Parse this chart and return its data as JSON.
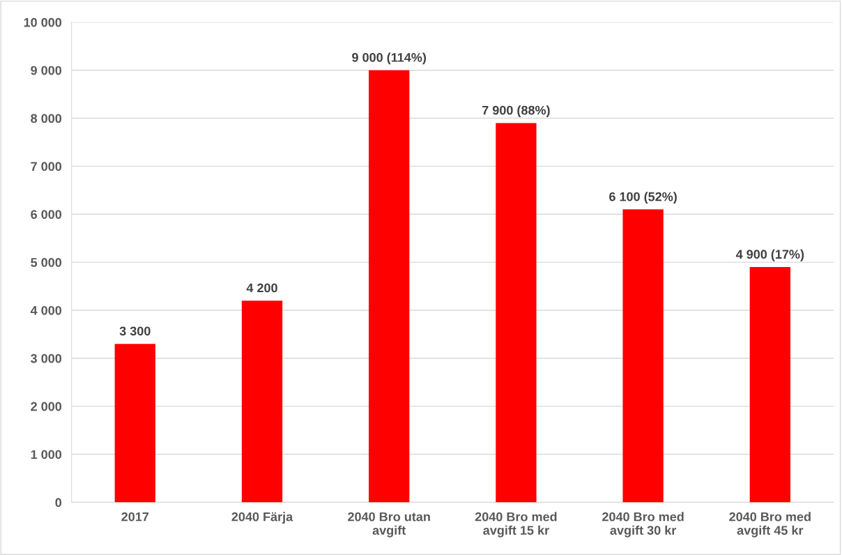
{
  "chart_data": {
    "type": "bar",
    "categories": [
      "2017",
      "2040 Färja",
      "2040 Bro utan\navgift",
      "2040 Bro med\navgift 15 kr",
      "2040 Bro med\navgift 30 kr",
      "2040 Bro med\navgift 45 kr"
    ],
    "values": [
      3300,
      4200,
      9000,
      7900,
      6100,
      4900
    ],
    "value_labels": [
      "3 300",
      "4 200",
      "9 000 (114%)",
      "7 900 (88%)",
      "6 100 (52%)",
      "4 900 (17%)"
    ],
    "color": "#ff0000",
    "ylim": [
      0,
      10000
    ],
    "yticks": [
      0,
      {
        "value": 1000,
        "label": "1 000"
      },
      {
        "value": 2000,
        "label": "2 000"
      },
      {
        "value": 3000,
        "label": "3 000"
      },
      {
        "value": 4000,
        "label": "4 000"
      },
      {
        "value": 5000,
        "label": "5 000"
      },
      {
        "value": 6000,
        "label": "6 000"
      },
      {
        "value": 7000,
        "label": "7 000"
      },
      {
        "value": 8000,
        "label": "8 000"
      },
      {
        "value": 9000,
        "label": "9 000"
      },
      {
        "value": 10000,
        "label": "10 000"
      }
    ],
    "grid": "y"
  }
}
